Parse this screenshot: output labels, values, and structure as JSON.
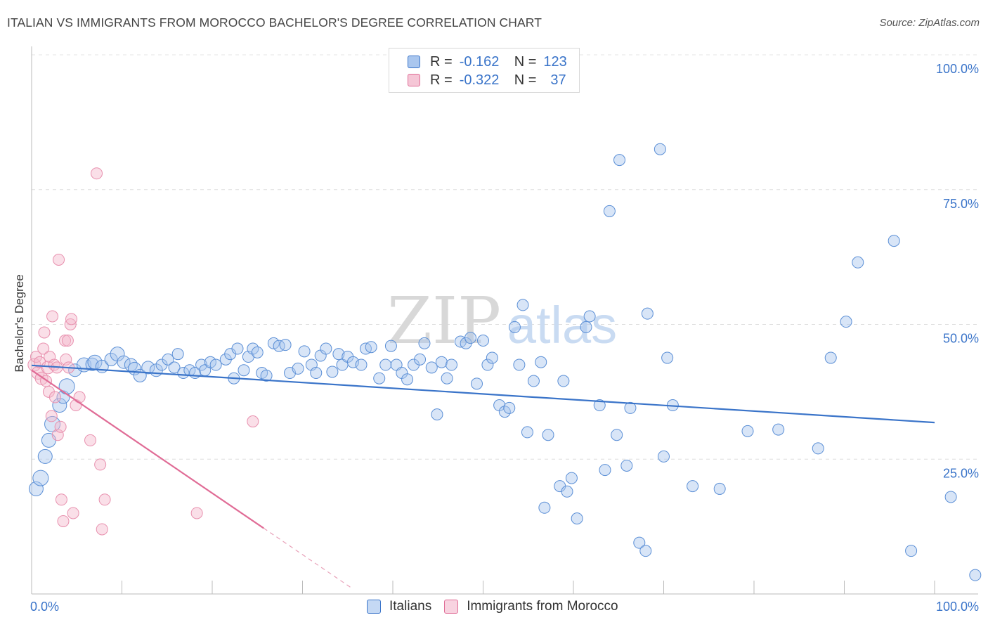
{
  "title": "ITALIAN VS IMMIGRANTS FROM MOROCCO BACHELOR'S DEGREE CORRELATION CHART",
  "source": "Source: ZipAtlas.com",
  "watermark": {
    "zip": "ZIP",
    "atlas": "atlas"
  },
  "colors": {
    "blue": "#3a74c9",
    "blue_fill": "#a9c6ee",
    "pink": "#e06c96",
    "pink_fill": "#f5b8cc",
    "axis_text": "#3a74c9"
  },
  "legend": {
    "rows": [
      {
        "r_label": "R =",
        "r_value": "-0.162",
        "n_label": "N =",
        "n_value": "123"
      },
      {
        "r_label": "R =",
        "r_value": "-0.322",
        "n_label": "N =",
        "n_value": "37"
      }
    ],
    "series_names": [
      "Italians",
      "Immigrants from Morocco"
    ]
  },
  "chart_data": {
    "type": "scatter",
    "title": "ITALIAN VS IMMIGRANTS FROM MOROCCO BACHELOR'S DEGREE CORRELATION CHART",
    "xlabel": "",
    "ylabel": "Bachelor's Degree",
    "xlim": [
      0,
      100
    ],
    "ylim": [
      0,
      100
    ],
    "x_tick_labels": [
      "0.0%",
      "100.0%"
    ],
    "y_tick_labels": [
      "100.0%",
      "75.0%",
      "50.0%",
      "25.0%"
    ],
    "y_ticks": [
      100,
      75,
      50,
      25
    ],
    "series": [
      {
        "name": "Italians",
        "r": -0.162,
        "n": 123,
        "trend": {
          "x0": 0,
          "y0": 42.4,
          "x1": 100,
          "y1": 31.8
        },
        "points": [
          [
            0.5,
            19.5,
            10
          ],
          [
            1.0,
            21.5,
            11
          ],
          [
            1.5,
            25.5,
            10
          ],
          [
            1.9,
            28.5,
            10
          ],
          [
            2.3,
            31.5,
            11
          ],
          [
            3.1,
            35,
            10
          ],
          [
            3.5,
            36.5,
            9
          ],
          [
            3.9,
            38.5,
            11
          ],
          [
            4.8,
            41.5,
            9
          ],
          [
            5.8,
            42.5,
            10
          ],
          [
            6.7,
            42.6,
            9
          ],
          [
            7.0,
            43.0,
            10
          ],
          [
            7.8,
            42.2,
            9
          ],
          [
            8.8,
            43.5,
            9
          ],
          [
            9.5,
            44.5,
            10
          ],
          [
            10.2,
            43,
            9
          ],
          [
            11.0,
            42.5,
            9
          ],
          [
            11.4,
            41.8,
            9
          ],
          [
            12.0,
            40.5,
            9
          ],
          [
            12.9,
            42,
            9
          ],
          [
            13.8,
            41.5,
            9
          ],
          [
            14.4,
            42.5,
            8
          ],
          [
            15.1,
            43.5,
            8
          ],
          [
            15.8,
            42,
            8
          ],
          [
            16.2,
            44.5,
            8
          ],
          [
            16.8,
            41,
            8
          ],
          [
            17.5,
            41.5,
            8
          ],
          [
            18.1,
            41,
            8
          ],
          [
            18.8,
            42.5,
            8
          ],
          [
            19.2,
            41.5,
            8
          ],
          [
            19.8,
            43,
            8
          ],
          [
            20.4,
            42.5,
            8
          ],
          [
            21.5,
            43.5,
            8
          ],
          [
            22.0,
            44.5,
            8
          ],
          [
            22.4,
            40,
            8
          ],
          [
            22.8,
            45.5,
            8
          ],
          [
            23.5,
            41.5,
            8
          ],
          [
            24.0,
            44,
            8
          ],
          [
            24.5,
            45.5,
            8
          ],
          [
            25.0,
            44.8,
            8
          ],
          [
            25.5,
            41,
            8
          ],
          [
            26.0,
            40.5,
            8
          ],
          [
            26.8,
            46.5,
            8
          ],
          [
            27.4,
            46,
            8
          ],
          [
            28.1,
            46.2,
            8
          ],
          [
            28.6,
            41,
            8
          ],
          [
            29.5,
            41.8,
            8
          ],
          [
            30.2,
            45,
            8
          ],
          [
            31.0,
            42.5,
            8
          ],
          [
            31.5,
            41,
            8
          ],
          [
            32.0,
            44.2,
            8
          ],
          [
            32.6,
            45.5,
            8
          ],
          [
            33.3,
            41.2,
            8
          ],
          [
            34.0,
            44.5,
            8
          ],
          [
            34.4,
            42.5,
            8
          ],
          [
            35.0,
            44,
            8
          ],
          [
            35.6,
            43,
            8
          ],
          [
            36.5,
            42.5,
            8
          ],
          [
            37.0,
            45.5,
            8
          ],
          [
            37.6,
            45.8,
            8
          ],
          [
            38.5,
            40,
            8
          ],
          [
            39.2,
            42.5,
            8
          ],
          [
            39.8,
            46,
            8
          ],
          [
            40.4,
            42.5,
            8
          ],
          [
            41.0,
            41,
            8
          ],
          [
            41.6,
            39.8,
            8
          ],
          [
            42.3,
            42.5,
            8
          ],
          [
            43.0,
            43.5,
            8
          ],
          [
            43.5,
            46.5,
            8
          ],
          [
            44.3,
            42,
            8
          ],
          [
            44.9,
            33.3,
            8
          ],
          [
            45.4,
            43,
            8
          ],
          [
            46.0,
            40,
            8
          ],
          [
            46.5,
            42.5,
            8
          ],
          [
            47.5,
            46.8,
            8
          ],
          [
            48.1,
            46.5,
            8
          ],
          [
            48.6,
            47.5,
            8
          ],
          [
            49.3,
            39,
            8
          ],
          [
            50.0,
            47,
            8
          ],
          [
            50.5,
            42.5,
            8
          ],
          [
            51.0,
            43.8,
            8
          ],
          [
            51.8,
            35,
            8
          ],
          [
            52.4,
            33.8,
            8
          ],
          [
            52.9,
            34.5,
            8
          ],
          [
            53.5,
            49.5,
            8
          ],
          [
            54.0,
            42.5,
            8
          ],
          [
            54.4,
            53.6,
            8
          ],
          [
            54.9,
            30,
            8
          ],
          [
            55.6,
            39.5,
            8
          ],
          [
            56.4,
            43,
            8
          ],
          [
            56.8,
            16,
            8
          ],
          [
            57.2,
            29.5,
            8
          ],
          [
            58.5,
            20,
            8
          ],
          [
            58.9,
            39.5,
            8
          ],
          [
            59.3,
            19,
            8
          ],
          [
            59.8,
            21.5,
            8
          ],
          [
            60.4,
            14,
            8
          ],
          [
            61.4,
            49.5,
            8
          ],
          [
            61.8,
            51.5,
            8
          ],
          [
            62.9,
            35,
            8
          ],
          [
            63.5,
            23,
            8
          ],
          [
            64.0,
            71,
            8
          ],
          [
            64.8,
            29.5,
            8
          ],
          [
            65.1,
            80.5,
            8
          ],
          [
            65.9,
            23.8,
            8
          ],
          [
            66.3,
            34.5,
            8
          ],
          [
            67.3,
            9.5,
            8
          ],
          [
            68.0,
            8,
            8
          ],
          [
            68.2,
            52,
            8
          ],
          [
            69.6,
            82.5,
            8
          ],
          [
            70.0,
            25.5,
            8
          ],
          [
            70.4,
            43.8,
            8
          ],
          [
            71.0,
            35,
            8
          ],
          [
            73.2,
            20,
            8
          ],
          [
            76.2,
            19.5,
            8
          ],
          [
            79.3,
            30.2,
            8
          ],
          [
            82.7,
            30.5,
            8
          ],
          [
            87.1,
            27,
            8
          ],
          [
            88.5,
            43.8,
            8
          ],
          [
            90.2,
            50.5,
            8
          ],
          [
            91.5,
            61.5,
            8
          ],
          [
            95.5,
            65.5,
            8
          ],
          [
            97.4,
            8,
            8
          ],
          [
            101.8,
            18,
            8
          ],
          [
            104.5,
            3.5,
            8
          ]
        ]
      },
      {
        "name": "Immigrants from Morocco",
        "r": -0.322,
        "n": 37,
        "trend": {
          "x0": 0,
          "y0": 41.5,
          "x1": 25.7,
          "y1": 12.2,
          "dash_to_x": 35.5
        },
        "points": [
          [
            0.3,
            42.5,
            9
          ],
          [
            0.5,
            44,
            8
          ],
          [
            0.7,
            41,
            9
          ],
          [
            0.9,
            43,
            8
          ],
          [
            1.1,
            40,
            9
          ],
          [
            1.3,
            45.5,
            8
          ],
          [
            1.4,
            48.5,
            8
          ],
          [
            1.6,
            39.5,
            8
          ],
          [
            1.8,
            42,
            9
          ],
          [
            1.9,
            37.5,
            8
          ],
          [
            2.0,
            44,
            8
          ],
          [
            2.2,
            33,
            8
          ],
          [
            2.3,
            51.5,
            8
          ],
          [
            2.5,
            42.5,
            8
          ],
          [
            2.6,
            36.5,
            8
          ],
          [
            2.8,
            42,
            8
          ],
          [
            2.9,
            29.5,
            8
          ],
          [
            3.0,
            62,
            8
          ],
          [
            3.2,
            31,
            8
          ],
          [
            3.3,
            17.5,
            8
          ],
          [
            3.5,
            13.5,
            8
          ],
          [
            3.7,
            47,
            8
          ],
          [
            3.8,
            43.5,
            8
          ],
          [
            4.0,
            47,
            8
          ],
          [
            4.1,
            42,
            8
          ],
          [
            4.3,
            50,
            8
          ],
          [
            4.4,
            51,
            8
          ],
          [
            4.6,
            15,
            8
          ],
          [
            4.9,
            35,
            8
          ],
          [
            5.3,
            36.5,
            8
          ],
          [
            6.5,
            28.5,
            8
          ],
          [
            7.2,
            78,
            8
          ],
          [
            7.6,
            24,
            8
          ],
          [
            7.8,
            12,
            8
          ],
          [
            8.1,
            17.5,
            8
          ],
          [
            18.3,
            15,
            8
          ],
          [
            24.5,
            32,
            8
          ]
        ]
      }
    ]
  }
}
